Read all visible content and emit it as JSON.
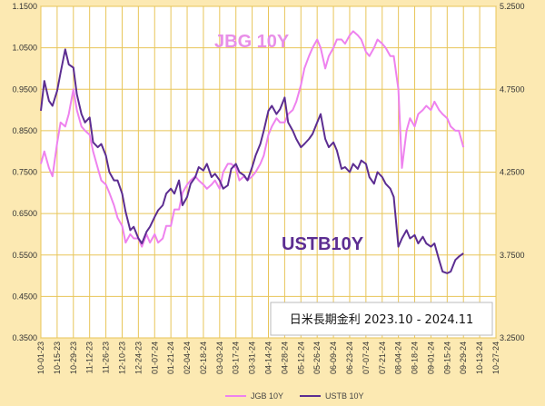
{
  "chart_data": {
    "type": "line",
    "title": "日米長期金利 2023.10 - 2024.11",
    "y_left": {
      "min": 0.35,
      "max": 1.15,
      "ticks": [
        "0.3500",
        "0.4500",
        "0.5500",
        "0.6500",
        "0.7500",
        "0.8500",
        "0.9500",
        "1.0500",
        "1.1500"
      ]
    },
    "y_right": {
      "min": 3.25,
      "max": 5.25,
      "ticks": [
        "3.2500",
        "3.7500",
        "4.2500",
        "4.7500",
        "5.2500"
      ]
    },
    "x_ticks": [
      "10-01-23",
      "10-15-23",
      "10-29-23",
      "11-12-23",
      "11-26-23",
      "12-10-23",
      "12-24-23",
      "01-07-24",
      "01-21-24",
      "02-04-24",
      "02-18-24",
      "03-03-24",
      "03-17-24",
      "03-31-24",
      "04-14-24",
      "04-28-24",
      "05-12-24",
      "05-26-24",
      "06-09-24",
      "06-23-24",
      "07-07-24",
      "07-21-24",
      "08-04-24",
      "08-18-24",
      "09-01-24",
      "09-15-24",
      "09-29-24",
      "10-13-24",
      "10-27-24"
    ],
    "grid": true,
    "labels": {
      "jgb": "JBG 10Y",
      "ustb": "USTB10Y"
    },
    "legend": {
      "position": "bottom",
      "entries": [
        "JGB 10Y",
        "USTB 10Y"
      ]
    },
    "series": [
      {
        "name": "JGB 10Y",
        "axis": "left",
        "color": "#EE82EE",
        "x": [
          "10-01-23",
          "10-04-23",
          "10-08-23",
          "10-11-23",
          "10-15-23",
          "10-18-23",
          "10-22-23",
          "10-25-23",
          "10-29-23",
          "11-01-23",
          "11-05-23",
          "11-08-23",
          "11-12-23",
          "11-15-23",
          "11-19-23",
          "11-22-23",
          "11-26-23",
          "11-29-23",
          "12-03-23",
          "12-06-23",
          "12-10-23",
          "12-13-23",
          "12-17-23",
          "12-20-23",
          "12-24-23",
          "12-27-23",
          "12-31-23",
          "01-03-24",
          "01-07-24",
          "01-10-24",
          "01-14-24",
          "01-17-24",
          "01-21-24",
          "01-24-24",
          "01-28-24",
          "01-31-24",
          "02-04-24",
          "02-07-24",
          "02-11-24",
          "02-14-24",
          "02-18-24",
          "02-21-24",
          "02-25-24",
          "02-28-24",
          "03-03-24",
          "03-06-24",
          "03-10-24",
          "03-13-24",
          "03-17-24",
          "03-20-24",
          "03-24-24",
          "03-27-24",
          "03-31-24",
          "04-03-24",
          "04-07-24",
          "04-10-24",
          "04-14-24",
          "04-17-24",
          "04-21-24",
          "04-24-24",
          "04-28-24",
          "05-01-24",
          "05-05-24",
          "05-08-24",
          "05-12-24",
          "05-15-24",
          "05-19-24",
          "05-22-24",
          "05-26-24",
          "05-29-24",
          "06-02-24",
          "06-05-24",
          "06-09-24",
          "06-12-24",
          "06-16-24",
          "06-19-24",
          "06-23-24",
          "06-26-24",
          "06-30-24",
          "07-03-24",
          "07-07-24",
          "07-10-24",
          "07-14-24",
          "07-17-24",
          "07-21-24",
          "07-24-24",
          "07-28-24",
          "07-31-24",
          "08-04-24",
          "08-07-24",
          "08-11-24",
          "08-14-24",
          "08-18-24",
          "08-21-24",
          "08-25-24",
          "08-28-24",
          "09-01-24",
          "09-04-24",
          "09-08-24",
          "09-11-24",
          "09-15-24",
          "09-18-24",
          "09-22-24",
          "09-25-24",
          "09-29-24"
        ],
        "values": [
          0.77,
          0.8,
          0.76,
          0.74,
          0.82,
          0.87,
          0.86,
          0.89,
          0.95,
          0.9,
          0.86,
          0.85,
          0.84,
          0.8,
          0.76,
          0.73,
          0.72,
          0.7,
          0.67,
          0.64,
          0.62,
          0.58,
          0.6,
          0.59,
          0.59,
          0.57,
          0.6,
          0.58,
          0.6,
          0.58,
          0.59,
          0.62,
          0.62,
          0.66,
          0.66,
          0.7,
          0.72,
          0.73,
          0.74,
          0.73,
          0.72,
          0.71,
          0.72,
          0.73,
          0.71,
          0.75,
          0.77,
          0.77,
          0.76,
          0.73,
          0.74,
          0.73,
          0.74,
          0.75,
          0.77,
          0.79,
          0.84,
          0.86,
          0.88,
          0.87,
          0.87,
          0.89,
          0.9,
          0.92,
          0.96,
          1.0,
          1.03,
          1.05,
          1.07,
          1.05,
          1.0,
          1.03,
          1.05,
          1.07,
          1.07,
          1.06,
          1.08,
          1.09,
          1.08,
          1.07,
          1.04,
          1.03,
          1.05,
          1.07,
          1.06,
          1.05,
          1.03,
          1.03,
          0.95,
          0.76,
          0.85,
          0.88,
          0.86,
          0.89,
          0.9,
          0.91,
          0.9,
          0.92,
          0.9,
          0.89,
          0.88,
          0.86,
          0.85,
          0.85,
          0.81
        ]
      },
      {
        "name": "USTB 10Y",
        "axis": "right",
        "color": "#5C2D91",
        "x": [
          "10-01-23",
          "10-04-23",
          "10-08-23",
          "10-11-23",
          "10-15-23",
          "10-18-23",
          "10-22-23",
          "10-25-23",
          "10-29-23",
          "11-01-23",
          "11-05-23",
          "11-08-23",
          "11-12-23",
          "11-15-23",
          "11-19-23",
          "11-22-23",
          "11-26-23",
          "11-29-23",
          "12-03-23",
          "12-06-23",
          "12-10-23",
          "12-13-23",
          "12-17-23",
          "12-20-23",
          "12-24-23",
          "12-27-23",
          "12-31-23",
          "01-03-24",
          "01-07-24",
          "01-10-24",
          "01-14-24",
          "01-17-24",
          "01-21-24",
          "01-24-24",
          "01-28-24",
          "01-31-24",
          "02-04-24",
          "02-07-24",
          "02-11-24",
          "02-14-24",
          "02-18-24",
          "02-21-24",
          "02-25-24",
          "02-28-24",
          "03-03-24",
          "03-06-24",
          "03-10-24",
          "03-13-24",
          "03-17-24",
          "03-20-24",
          "03-24-24",
          "03-27-24",
          "03-31-24",
          "04-03-24",
          "04-07-24",
          "04-10-24",
          "04-14-24",
          "04-17-24",
          "04-21-24",
          "04-24-24",
          "04-28-24",
          "05-01-24",
          "05-05-24",
          "05-08-24",
          "05-12-24",
          "05-15-24",
          "05-19-24",
          "05-22-24",
          "05-26-24",
          "05-29-24",
          "06-02-24",
          "06-05-24",
          "06-09-24",
          "06-12-24",
          "06-16-24",
          "06-19-24",
          "06-23-24",
          "06-26-24",
          "06-30-24",
          "07-03-24",
          "07-07-24",
          "07-10-24",
          "07-14-24",
          "07-17-24",
          "07-21-24",
          "07-24-24",
          "07-28-24",
          "07-31-24",
          "08-04-24",
          "08-07-24",
          "08-11-24",
          "08-14-24",
          "08-18-24",
          "08-21-24",
          "08-25-24",
          "08-28-24",
          "09-01-24",
          "09-04-24",
          "09-08-24",
          "09-11-24",
          "09-15-24",
          "09-18-24",
          "09-22-24",
          "09-25-24",
          "09-29-24"
        ],
        "values": [
          4.62,
          4.8,
          4.68,
          4.65,
          4.74,
          4.85,
          4.99,
          4.9,
          4.88,
          4.72,
          4.6,
          4.55,
          4.58,
          4.43,
          4.4,
          4.42,
          4.35,
          4.25,
          4.2,
          4.2,
          4.12,
          4.01,
          3.9,
          3.92,
          3.85,
          3.82,
          3.89,
          3.92,
          3.98,
          4.02,
          4.05,
          4.12,
          4.15,
          4.12,
          4.2,
          4.05,
          4.1,
          4.18,
          4.22,
          4.28,
          4.26,
          4.3,
          4.22,
          4.24,
          4.2,
          4.15,
          4.17,
          4.27,
          4.3,
          4.25,
          4.23,
          4.2,
          4.28,
          4.35,
          4.42,
          4.5,
          4.62,
          4.65,
          4.6,
          4.63,
          4.7,
          4.55,
          4.5,
          4.45,
          4.4,
          4.42,
          4.45,
          4.48,
          4.55,
          4.6,
          4.45,
          4.4,
          4.43,
          4.38,
          4.27,
          4.28,
          4.25,
          4.3,
          4.27,
          4.32,
          4.3,
          4.22,
          4.18,
          4.25,
          4.22,
          4.18,
          4.15,
          4.1,
          3.8,
          3.85,
          3.9,
          3.85,
          3.87,
          3.82,
          3.86,
          3.82,
          3.8,
          3.82,
          3.72,
          3.65,
          3.64,
          3.65,
          3.72,
          3.74,
          3.76
        ]
      }
    ]
  },
  "annotation_box": {
    "text": "日米長期金利 2023.10 - 2024.11"
  },
  "colors": {
    "background": "#FCE9B2",
    "plot": "#FFFFFF",
    "grid": "#E8C558",
    "jgb": "#EE82EE",
    "ustb": "#5C2D91",
    "jgb_label": "#E88FE8",
    "ustb_label": "#5C2D91"
  }
}
